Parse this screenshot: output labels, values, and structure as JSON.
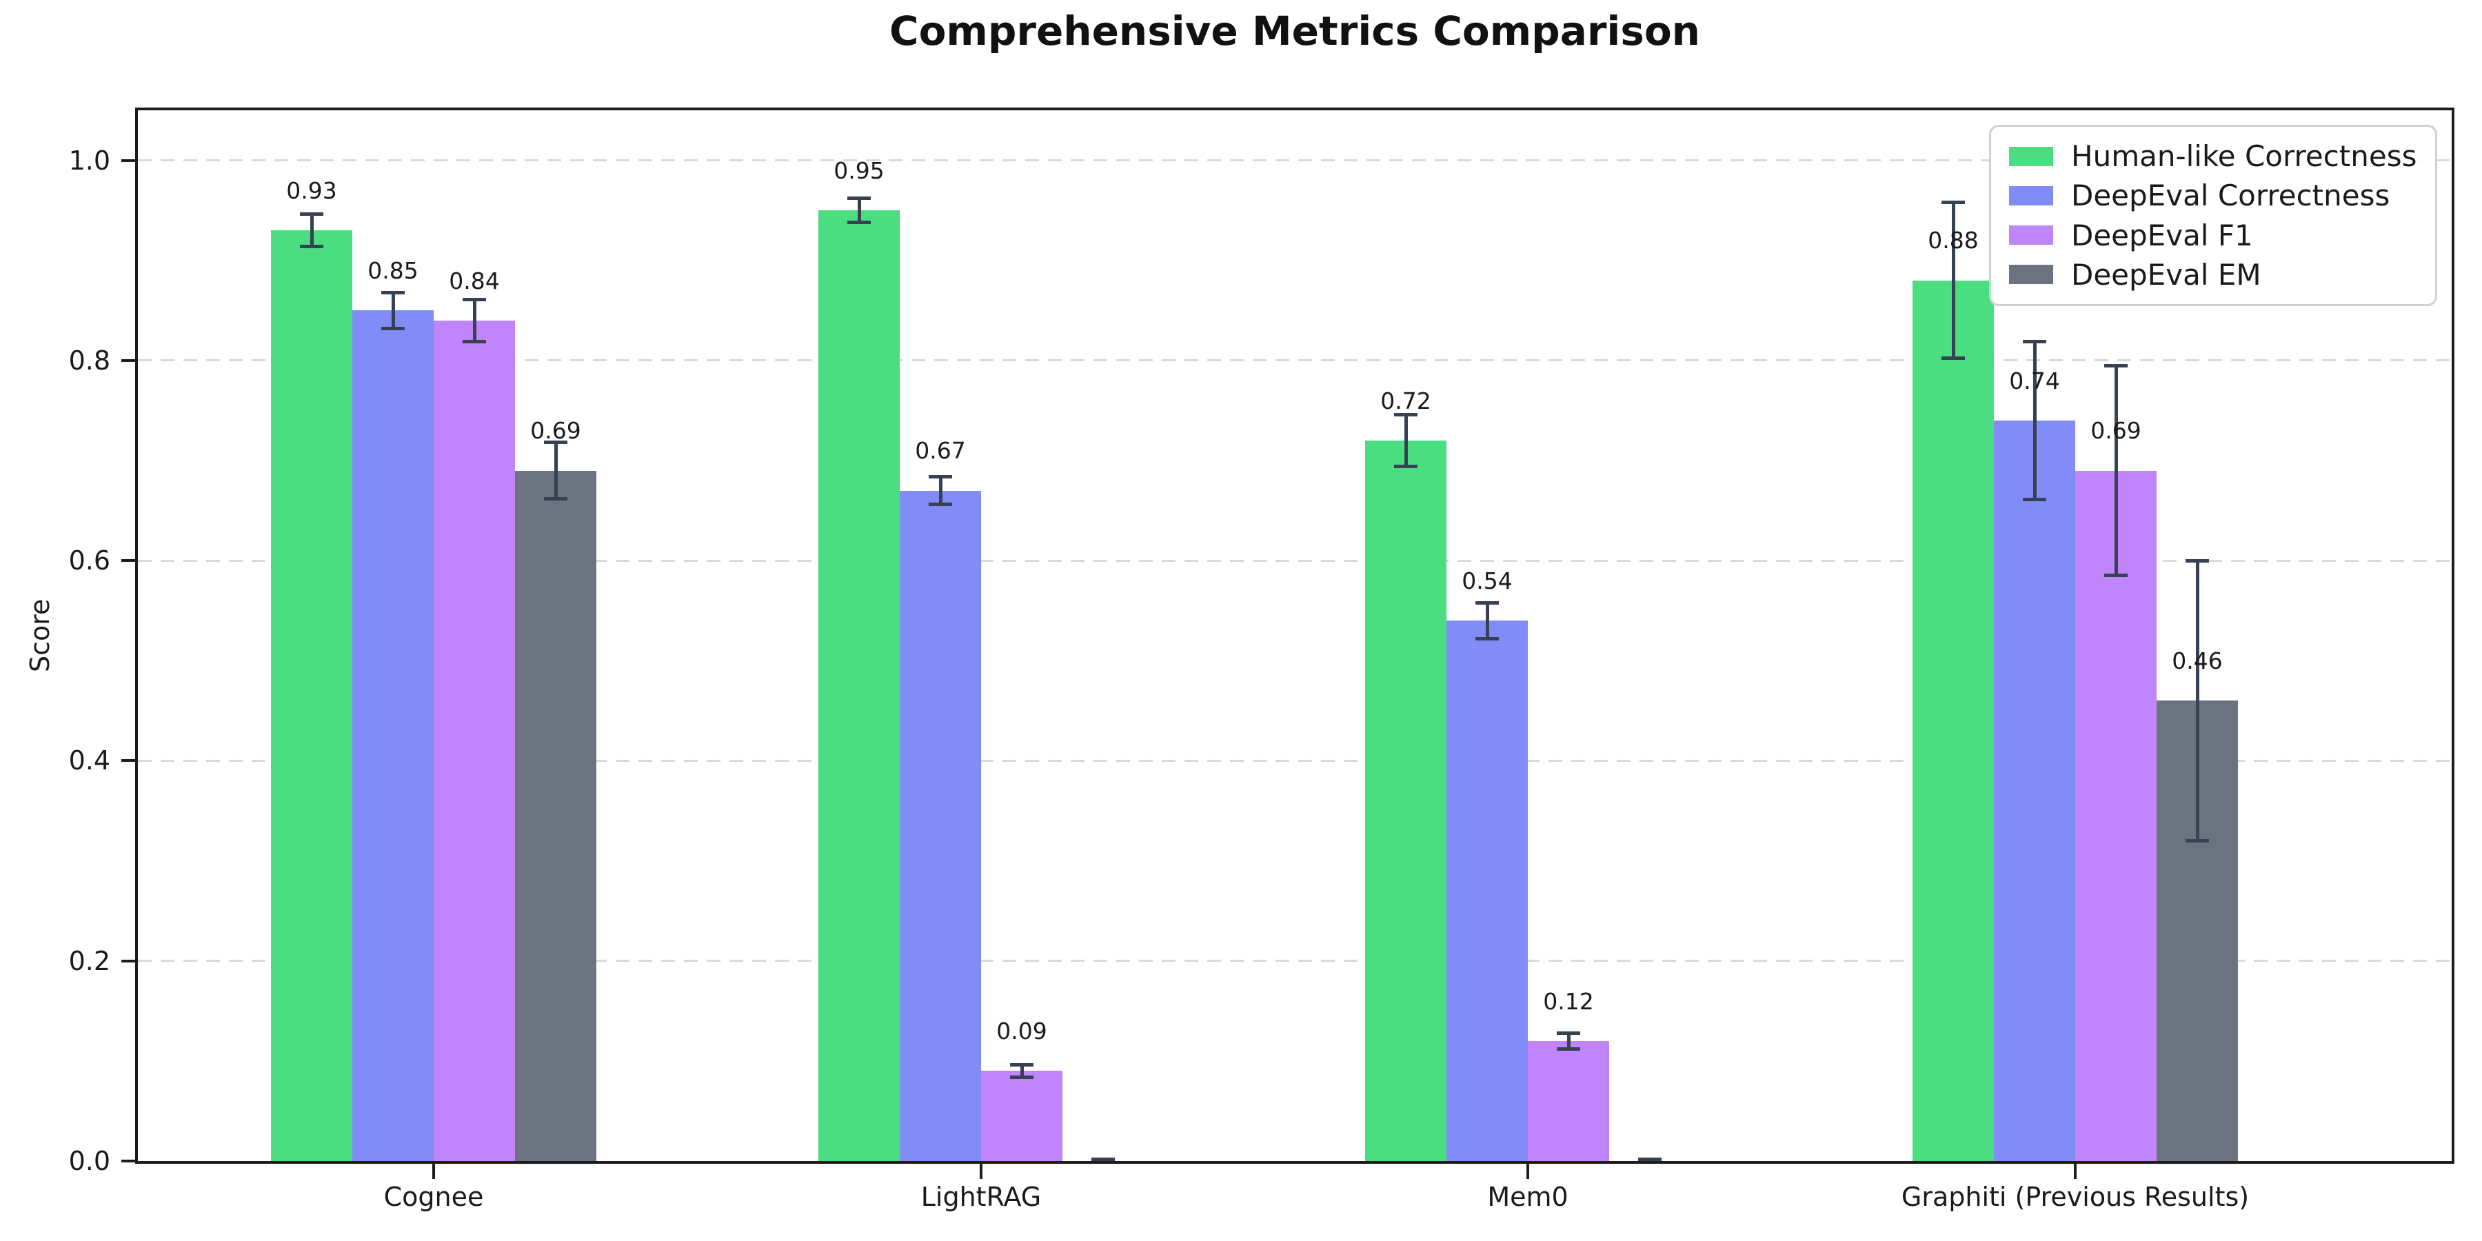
{
  "chart_data": {
    "type": "bar",
    "title": "Comprehensive Metrics Comparison",
    "xlabel": "",
    "ylabel": "Score",
    "categories": [
      "Cognee",
      "LightRAG",
      "Mem0",
      "Graphiti (Previous Results)"
    ],
    "series": [
      {
        "name": "Human-like Correctness",
        "color": "#4ade80",
        "values": [
          0.93,
          0.95,
          0.72,
          0.88
        ],
        "errors": [
          0.016,
          0.012,
          0.026,
          0.078
        ],
        "labels": [
          "0.93",
          "0.95",
          "0.72",
          "0.88"
        ]
      },
      {
        "name": "DeepEval Correctness",
        "color": "#818cf8",
        "values": [
          0.85,
          0.67,
          0.54,
          0.74
        ],
        "errors": [
          0.018,
          0.014,
          0.018,
          0.079
        ],
        "labels": [
          "0.85",
          "0.67",
          "0.54",
          "0.74"
        ]
      },
      {
        "name": "DeepEval F1",
        "color": "#c084fc",
        "values": [
          0.84,
          0.09,
          0.12,
          0.69
        ],
        "errors": [
          0.021,
          0.006,
          0.008,
          0.105
        ],
        "labels": [
          "0.84",
          "0.09",
          "0.12",
          "0.69"
        ]
      },
      {
        "name": "DeepEval EM",
        "color": "#6b7280",
        "values": [
          0.69,
          0.0,
          0.0,
          0.46
        ],
        "errors": [
          0.028,
          0.002,
          0.002,
          0.14
        ],
        "labels": [
          "0.69",
          null,
          null,
          "0.46"
        ]
      }
    ],
    "yticks": [
      "0.0",
      "0.2",
      "0.4",
      "0.6",
      "0.8",
      "1.0"
    ],
    "ylim": [
      0,
      1.05
    ],
    "grid": "dashed-horizontal",
    "grid_color": "#d9d9d9",
    "error_bar_color": "#364153",
    "legend_position": "upper-right",
    "has_error_bars": true
  }
}
